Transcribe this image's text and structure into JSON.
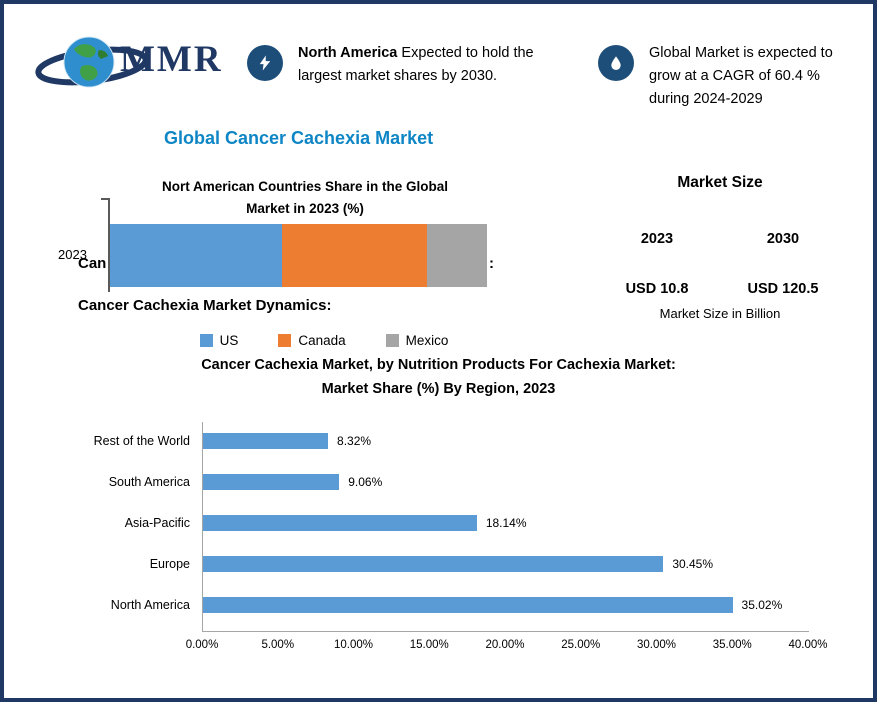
{
  "colors": {
    "border_navy": "#203864",
    "title_blue": "#0e86c5",
    "icon_navy": "#1d4e79",
    "bar_blue": "#5b9bd5",
    "bar_orange": "#ed7d31",
    "bar_gray": "#a5a5a5"
  },
  "logo": {
    "text": "MMR"
  },
  "callouts": [
    {
      "icon": "lightning-icon",
      "bold": "North America",
      "text": " Expected to hold the largest market shares by 2030."
    },
    {
      "icon": "flame-icon",
      "text": "Global Market is expected to grow at a CAGR of 60.4 % during 2024-2029"
    }
  ],
  "page_title": "Global Cancer Cachexia Market",
  "covered_heading": {
    "visible_left": "Can",
    "visible_right": ":"
  },
  "dynamics_heading": "Cancer Cachexia Market Dynamics:",
  "market_size": {
    "title": "Market Size",
    "year_left": "2023",
    "year_right": "2030",
    "value_left": "USD 10.8",
    "value_right": "USD 120.5",
    "unit_note": "Market Size in Billion"
  },
  "chart_data": [
    {
      "type": "bar",
      "subtype": "stacked-horizontal",
      "title": "Nort American Countries Share in the Global Market in 2023 (%)",
      "title_lines": [
        "Nort American Countries Share in the Global",
        "Market in 2023 (%)"
      ],
      "categories": [
        "2023"
      ],
      "series": [
        {
          "name": "US",
          "color": "#5b9bd5",
          "values": [
            45.6
          ]
        },
        {
          "name": "Canada",
          "color": "#ed7d31",
          "values": [
            38.4
          ]
        },
        {
          "name": "Mexico",
          "color": "#a5a5a5",
          "values": [
            16.0
          ]
        }
      ],
      "legend_position": "bottom"
    },
    {
      "type": "bar",
      "subtype": "horizontal",
      "title": "Cancer Cachexia Market, by Nutrition Products For Cachexia Market: Market Share (%) By Region, 2023",
      "title_lines": [
        "Cancer Cachexia Market, by Nutrition Products For Cachexia Market:",
        "Market Share (%) By Region, 2023"
      ],
      "categories": [
        "Rest of the World",
        "South America",
        "Asia-Pacific",
        "Europe",
        "North America"
      ],
      "values": [
        8.32,
        9.06,
        18.14,
        30.45,
        35.02
      ],
      "labels": [
        "8.32%",
        "9.06%",
        "18.14%",
        "30.45%",
        "35.02%"
      ],
      "bar_color": "#5b9bd5",
      "xlim": [
        0,
        40
      ],
      "x_ticks": [
        "0.00%",
        "5.00%",
        "10.00%",
        "15.00%",
        "20.00%",
        "25.00%",
        "30.00%",
        "35.00%",
        "40.00%"
      ]
    }
  ]
}
